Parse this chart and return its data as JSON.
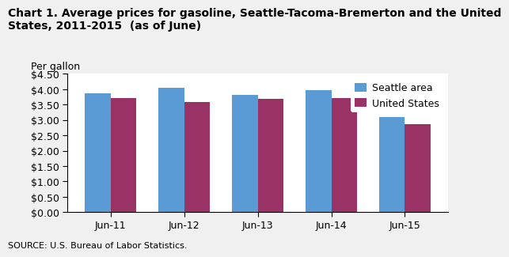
{
  "title": "Chart 1. Average prices for gasoline, Seattle-Tacoma-Bremerton and the United\nStates, 2011-2015  (as of June)",
  "per_gallon_label": "Per gallon",
  "categories": [
    "Jun-11",
    "Jun-12",
    "Jun-13",
    "Jun-14",
    "Jun-15"
  ],
  "seattle_values": [
    3.88,
    4.05,
    3.81,
    3.98,
    3.09
  ],
  "us_values": [
    3.71,
    3.58,
    3.68,
    3.71,
    2.87
  ],
  "seattle_color": "#5B9BD5",
  "us_color": "#993366",
  "ylim": [
    0.0,
    4.5
  ],
  "yticks": [
    0.0,
    0.5,
    1.0,
    1.5,
    2.0,
    2.5,
    3.0,
    3.5,
    4.0,
    4.5
  ],
  "legend_labels": [
    "Seattle area",
    "United States"
  ],
  "source_text": "SOURCE: U.S. Bureau of Labor Statistics.",
  "plot_bg_color": "#FFFFFF",
  "fig_bg_color": "#F0F0F0",
  "title_fontsize": 10,
  "tick_fontsize": 9,
  "legend_fontsize": 9,
  "source_fontsize": 8,
  "per_gallon_fontsize": 9,
  "bar_width": 0.35
}
